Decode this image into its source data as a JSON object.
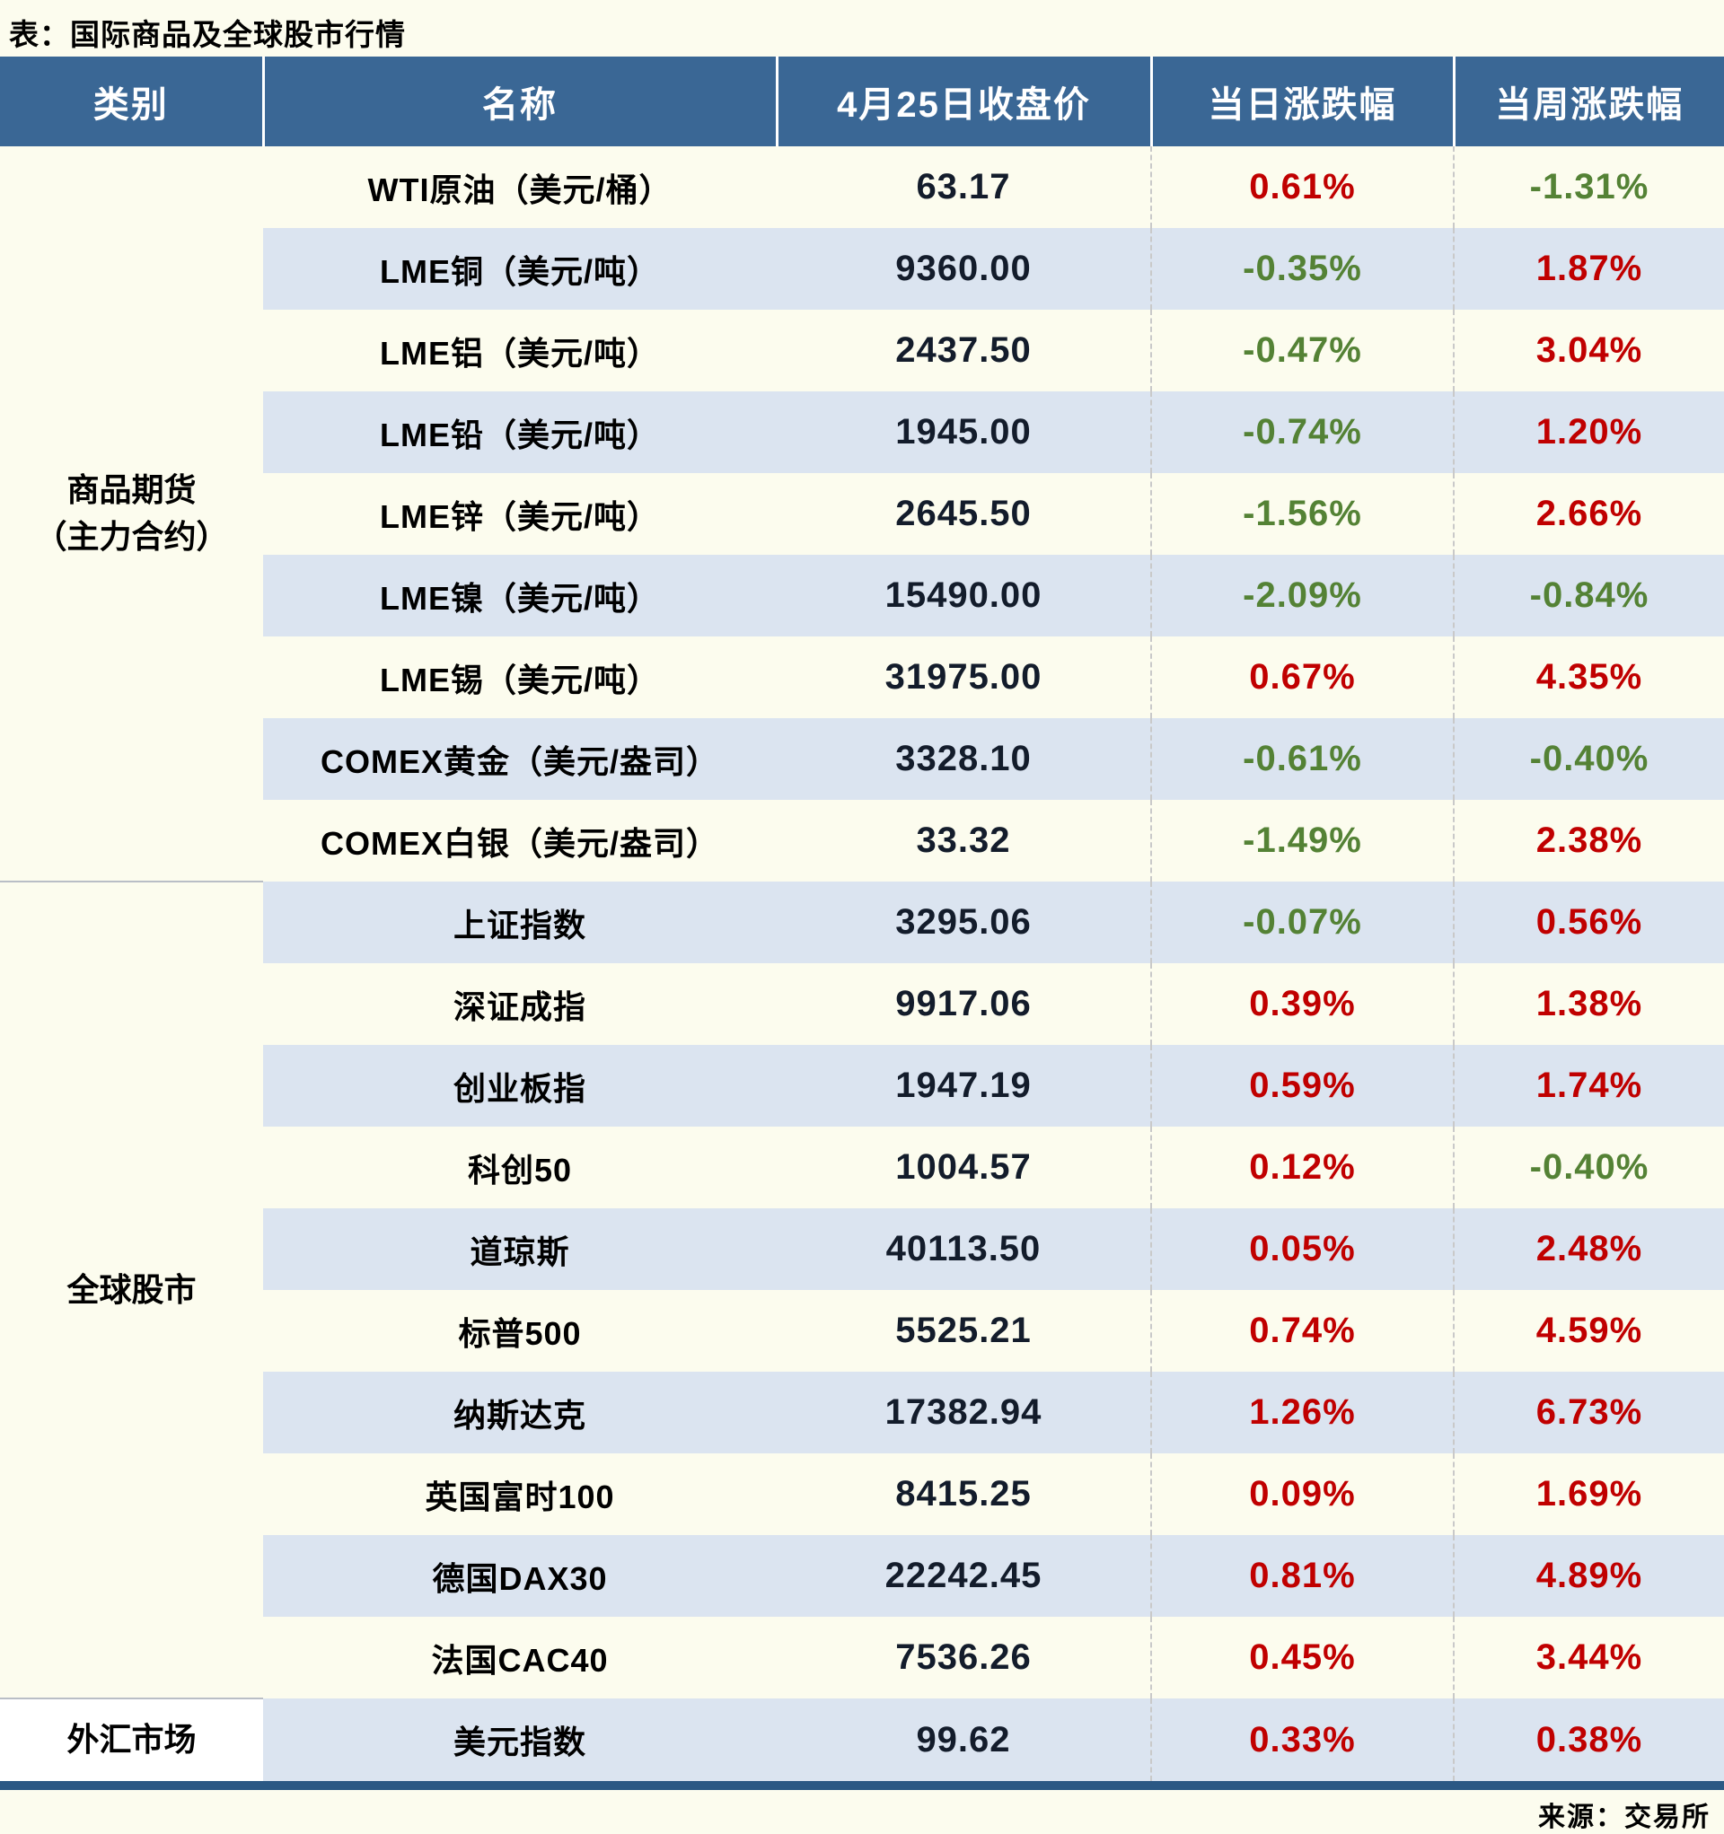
{
  "title": "表：国际商品及全球股市行情",
  "source": "来源：交易所",
  "colors": {
    "up": "#C00000",
    "down": "#548235",
    "header_bg": "#3A6795",
    "stripe": "#DBE4F0",
    "page_background": "#FCFCEE",
    "accent_bar": "#2B5884",
    "price_text": "#131C2B"
  },
  "table": {
    "columns": [
      "类别",
      "名称",
      "4月25日收盘价",
      "当日涨跌幅",
      "当周涨跌幅"
    ],
    "sections": [
      {
        "category": "商品期货\n（主力合约）",
        "rows": [
          {
            "name": "WTI原油（美元/桶）",
            "close": "63.17",
            "day": "0.61%",
            "week": "-1.31%"
          },
          {
            "name": "LME铜（美元/吨）",
            "close": "9360.00",
            "day": "-0.35%",
            "week": "1.87%"
          },
          {
            "name": "LME铝（美元/吨）",
            "close": "2437.50",
            "day": "-0.47%",
            "week": "3.04%"
          },
          {
            "name": "LME铅（美元/吨）",
            "close": "1945.00",
            "day": "-0.74%",
            "week": "1.20%"
          },
          {
            "name": "LME锌（美元/吨）",
            "close": "2645.50",
            "day": "-1.56%",
            "week": "2.66%"
          },
          {
            "name": "LME镍（美元/吨）",
            "close": "15490.00",
            "day": "-2.09%",
            "week": "-0.84%"
          },
          {
            "name": "LME锡（美元/吨）",
            "close": "31975.00",
            "day": "0.67%",
            "week": "4.35%"
          },
          {
            "name": "COMEX黄金（美元/盎司）",
            "close": "3328.10",
            "day": "-0.61%",
            "week": "-0.40%"
          },
          {
            "name": "COMEX白银（美元/盎司）",
            "close": "33.32",
            "day": "-1.49%",
            "week": "2.38%"
          }
        ]
      },
      {
        "category": "全球股市",
        "rows": [
          {
            "name": "上证指数",
            "close": "3295.06",
            "day": "-0.07%",
            "week": "0.56%"
          },
          {
            "name": "深证成指",
            "close": "9917.06",
            "day": "0.39%",
            "week": "1.38%"
          },
          {
            "name": "创业板指",
            "close": "1947.19",
            "day": "0.59%",
            "week": "1.74%"
          },
          {
            "name": "科创50",
            "close": "1004.57",
            "day": "0.12%",
            "week": "-0.40%"
          },
          {
            "name": "道琼斯",
            "close": "40113.50",
            "day": "0.05%",
            "week": "2.48%"
          },
          {
            "name": "标普500",
            "close": "5525.21",
            "day": "0.74%",
            "week": "4.59%"
          },
          {
            "name": "纳斯达克",
            "close": "17382.94",
            "day": "1.26%",
            "week": "6.73%"
          },
          {
            "name": "英国富时100",
            "close": "8415.25",
            "day": "0.09%",
            "week": "1.69%"
          },
          {
            "name": "德国DAX30",
            "close": "22242.45",
            "day": "0.81%",
            "week": "4.89%"
          },
          {
            "name": "法国CAC40",
            "close": "7536.26",
            "day": "0.45%",
            "week": "3.44%"
          }
        ]
      },
      {
        "category": "外汇市场",
        "rows": [
          {
            "name": "美元指数",
            "close": "99.62",
            "day": "0.33%",
            "week": "0.38%"
          }
        ]
      }
    ]
  },
  "chart_data": {
    "type": "table",
    "title": "表：国际商品及全球股市行情",
    "columns": [
      "类别",
      "名称",
      "4月25日收盘价",
      "当日涨跌幅",
      "当周涨跌幅"
    ],
    "rows": [
      [
        "商品期货（主力合约）",
        "WTI原油（美元/桶）",
        63.17,
        0.61,
        -1.31
      ],
      [
        "商品期货（主力合约）",
        "LME铜（美元/吨）",
        9360.0,
        -0.35,
        1.87
      ],
      [
        "商品期货（主力合约）",
        "LME铝（美元/吨）",
        2437.5,
        -0.47,
        3.04
      ],
      [
        "商品期货（主力合约）",
        "LME铅（美元/吨）",
        1945.0,
        -0.74,
        1.2
      ],
      [
        "商品期货（主力合约）",
        "LME锌（美元/吨）",
        2645.5,
        -1.56,
        2.66
      ],
      [
        "商品期货（主力合约）",
        "LME镍（美元/吨）",
        15490.0,
        -2.09,
        -0.84
      ],
      [
        "商品期货（主力合约）",
        "LME锡（美元/吨）",
        31975.0,
        0.67,
        4.35
      ],
      [
        "商品期货（主力合约）",
        "COMEX黄金（美元/盎司）",
        3328.1,
        -0.61,
        -0.4
      ],
      [
        "商品期货（主力合约）",
        "COMEX白银（美元/盎司）",
        33.32,
        -1.49,
        2.38
      ],
      [
        "全球股市",
        "上证指数",
        3295.06,
        -0.07,
        0.56
      ],
      [
        "全球股市",
        "深证成指",
        9917.06,
        0.39,
        1.38
      ],
      [
        "全球股市",
        "创业板指",
        1947.19,
        0.59,
        1.74
      ],
      [
        "全球股市",
        "科创50",
        1004.57,
        0.12,
        -0.4
      ],
      [
        "全球股市",
        "道琼斯",
        40113.5,
        0.05,
        2.48
      ],
      [
        "全球股市",
        "标普500",
        5525.21,
        0.74,
        4.59
      ],
      [
        "全球股市",
        "纳斯达克",
        17382.94,
        1.26,
        6.73
      ],
      [
        "全球股市",
        "英国富时100",
        8415.25,
        0.09,
        1.69
      ],
      [
        "全球股市",
        "德国DAX30",
        22242.45,
        0.81,
        4.89
      ],
      [
        "全球股市",
        "法国CAC40",
        7536.26,
        0.45,
        3.44
      ],
      [
        "外汇市场",
        "美元指数",
        99.62,
        0.33,
        0.38
      ]
    ],
    "notes": "涨跌幅颜色：正值为红色，负值为绿色；来源：交易所"
  }
}
